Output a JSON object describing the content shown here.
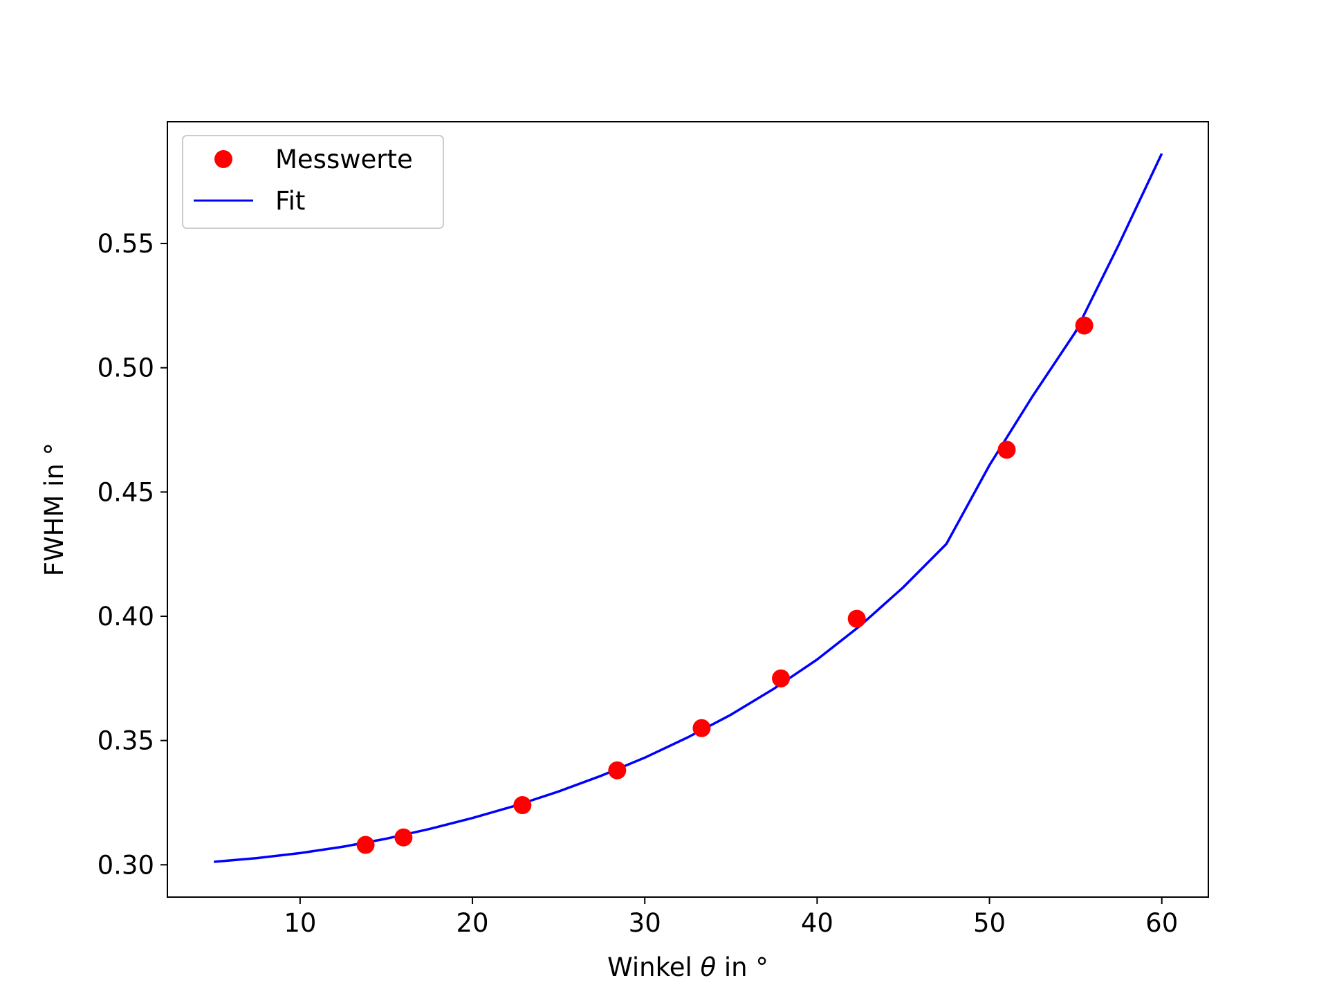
{
  "chart_data": {
    "type": "scatter",
    "title": "",
    "xlabel": "Winkel θ in °",
    "xlabel_parts": {
      "before": "Winkel ",
      "symbol": "θ",
      "after": " in °"
    },
    "ylabel": "FWHM in °",
    "xlim": [
      2.3,
      62.7
    ],
    "ylim": [
      0.287,
      0.599
    ],
    "xticks": [
      10,
      20,
      30,
      40,
      50,
      60
    ],
    "yticks": [
      0.3,
      0.35,
      0.4,
      0.45,
      0.5,
      0.55
    ],
    "ytick_labels": [
      "0.30",
      "0.35",
      "0.40",
      "0.45",
      "0.50",
      "0.55"
    ],
    "grid": false,
    "legend_position": "upper-left",
    "series": [
      {
        "name": "Messwerte",
        "kind": "points",
        "color": "#ff0000",
        "x": [
          13.8,
          16.0,
          22.9,
          28.4,
          33.3,
          37.9,
          42.3,
          51.0,
          55.5
        ],
        "y": [
          0.308,
          0.311,
          0.324,
          0.338,
          0.355,
          0.375,
          0.399,
          0.467,
          0.517
        ]
      },
      {
        "name": "Fit",
        "kind": "line",
        "color": "#0000ff",
        "x": [
          5,
          7.5,
          10,
          12.5,
          15,
          17.5,
          20,
          22.5,
          25,
          27.5,
          30,
          32.5,
          35,
          37.5,
          40,
          42.5,
          45,
          47.5,
          50,
          52.5,
          55,
          57.5,
          60
        ],
        "y": [
          0.3012,
          0.3027,
          0.3047,
          0.3073,
          0.3105,
          0.3144,
          0.3188,
          0.3238,
          0.3295,
          0.3359,
          0.3431,
          0.3513,
          0.3604,
          0.3709,
          0.3826,
          0.3962,
          0.4117,
          0.4291,
          0.4608,
          0.4885,
          0.5145,
          0.5495,
          0.5862
        ]
      }
    ]
  }
}
